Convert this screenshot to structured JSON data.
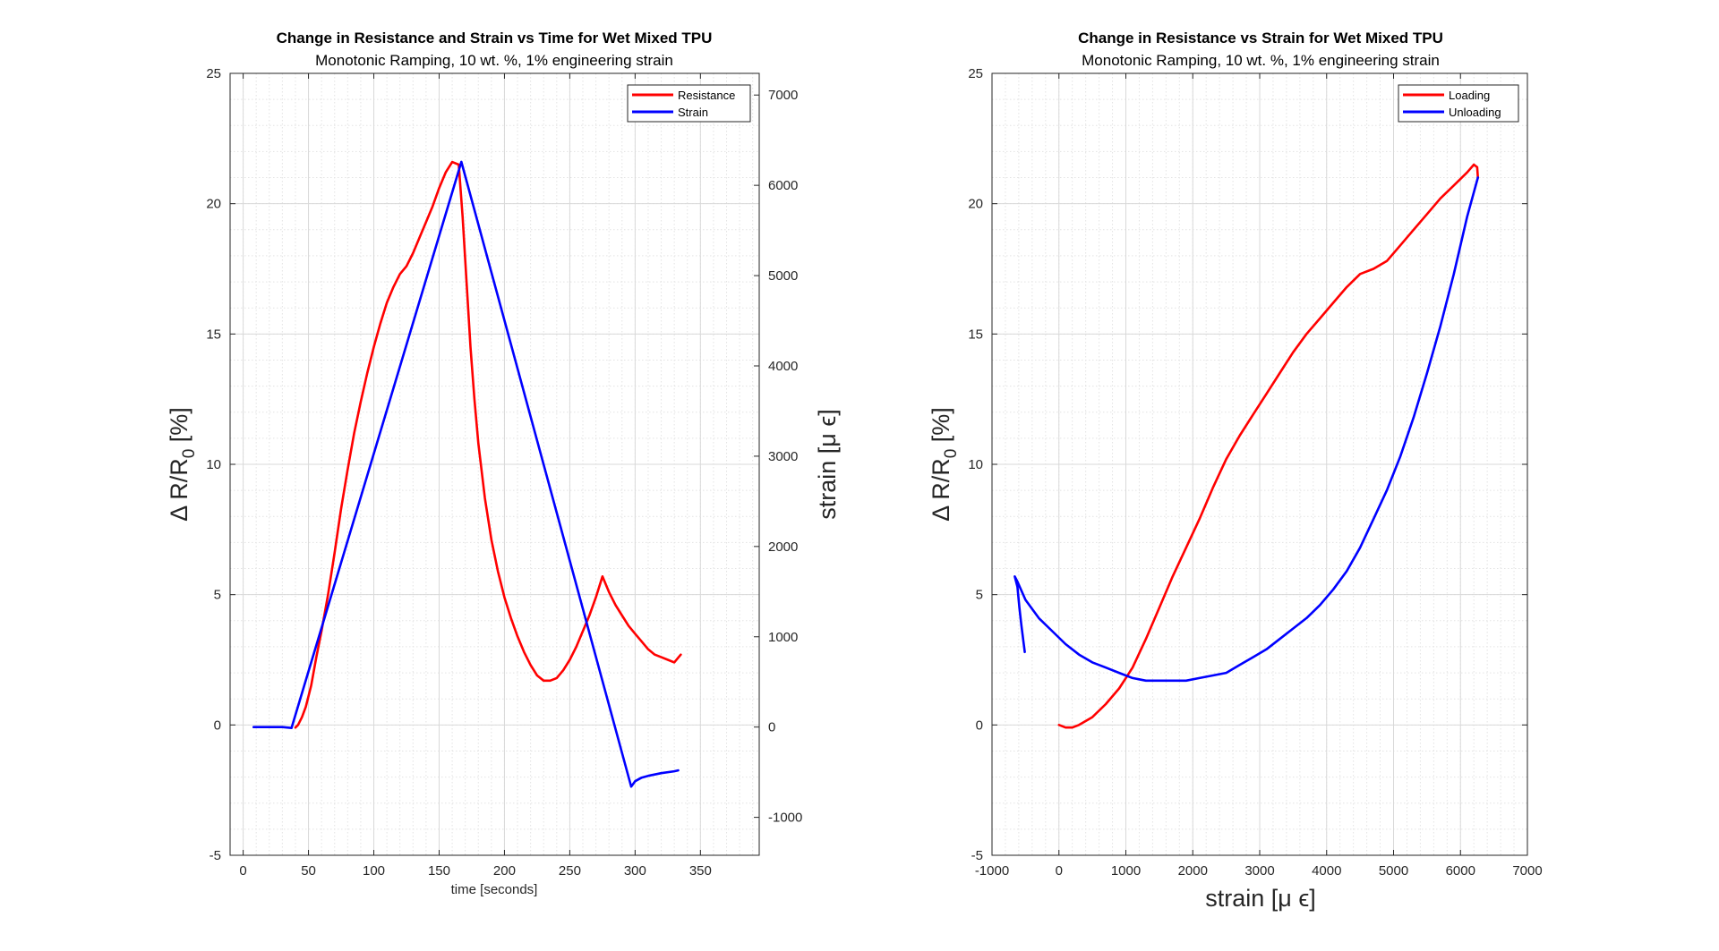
{
  "chart_data": [
    {
      "type": "line",
      "title": "Change in Resistance and Strain vs Time for Wet Mixed TPU",
      "subtitle": "Monotonic Ramping, 10 wt. %, 1% engineering strain",
      "xlabel": "time [seconds]",
      "ylabel": "Δ R/R0 [%]",
      "ylabel_main": "Δ R/R",
      "ylabel_sub": "0",
      "ylabel_tail": " [%]",
      "y2label": "strain [μ ϵ]",
      "xlim": [
        -10,
        395
      ],
      "ylim": [
        -5,
        25
      ],
      "y2lim": [
        -1420,
        7240
      ],
      "xticks": [
        0,
        50,
        100,
        150,
        200,
        250,
        300,
        350
      ],
      "yticks": [
        -5,
        0,
        5,
        10,
        15,
        20,
        25
      ],
      "y2ticks": [
        -1000,
        0,
        1000,
        2000,
        3000,
        4000,
        5000,
        6000,
        7000
      ],
      "grid": true,
      "minor_grid": true,
      "legend_position": "top-right",
      "series": [
        {
          "name": "Resistance",
          "axis": "left",
          "color": "#ff0000",
          "x": [
            40,
            42,
            45,
            48,
            52,
            56,
            60,
            65,
            70,
            75,
            80,
            85,
            90,
            95,
            100,
            105,
            110,
            115,
            120,
            125,
            130,
            135,
            140,
            145,
            150,
            155,
            160,
            165,
            168,
            171,
            174,
            177,
            180,
            185,
            190,
            195,
            200,
            205,
            210,
            215,
            220,
            225,
            230,
            235,
            240,
            245,
            250,
            255,
            260,
            265,
            270,
            275,
            280,
            285,
            290,
            295,
            300,
            305,
            310,
            315,
            320,
            325,
            330,
            335
          ],
          "y": [
            -0.1,
            0.0,
            0.3,
            0.7,
            1.5,
            2.6,
            3.6,
            5.0,
            6.6,
            8.3,
            9.8,
            11.2,
            12.4,
            13.5,
            14.5,
            15.4,
            16.2,
            16.8,
            17.3,
            17.6,
            18.1,
            18.7,
            19.3,
            19.9,
            20.6,
            21.2,
            21.6,
            21.5,
            19.5,
            17.0,
            14.5,
            12.5,
            10.8,
            8.7,
            7.1,
            5.9,
            4.9,
            4.1,
            3.4,
            2.8,
            2.3,
            1.9,
            1.7,
            1.7,
            1.8,
            2.1,
            2.5,
            3.0,
            3.6,
            4.2,
            4.9,
            5.7,
            5.1,
            4.6,
            4.2,
            3.8,
            3.5,
            3.2,
            2.9,
            2.7,
            2.6,
            2.5,
            2.4,
            2.7
          ]
        },
        {
          "name": "Strain",
          "axis": "right",
          "color": "#0000ff",
          "x": [
            8,
            20,
            30,
            37,
            167,
            297,
            300,
            305,
            310,
            320,
            330,
            333
          ],
          "y": [
            0,
            0,
            0,
            -10,
            6260,
            -660,
            -600,
            -560,
            -540,
            -510,
            -490,
            -480
          ]
        }
      ]
    },
    {
      "type": "line",
      "title": "Change in Resistance vs Strain for Wet Mixed TPU",
      "subtitle": "Monotonic Ramping, 10 wt. %, 1% engineering strain",
      "xlabel": "strain [μ ϵ]",
      "ylabel": "Δ R/R0 [%]",
      "ylabel_main": "Δ R/R",
      "ylabel_sub": "0",
      "ylabel_tail": " [%]",
      "xlim": [
        -1000,
        7000
      ],
      "ylim": [
        -5,
        25
      ],
      "xticks": [
        -1000,
        0,
        1000,
        2000,
        3000,
        4000,
        5000,
        6000,
        7000
      ],
      "yticks": [
        -5,
        0,
        5,
        10,
        15,
        20,
        25
      ],
      "grid": true,
      "minor_grid": true,
      "legend_position": "top-right",
      "series": [
        {
          "name": "Loading",
          "color": "#ff0000",
          "x": [
            0,
            100,
            200,
            300,
            500,
            700,
            900,
            1000,
            1100,
            1300,
            1500,
            1700,
            1900,
            2100,
            2300,
            2500,
            2700,
            2900,
            3100,
            3300,
            3500,
            3700,
            3900,
            4100,
            4300,
            4500,
            4700,
            4900,
            5100,
            5300,
            5500,
            5700,
            5900,
            6100,
            6200,
            6250,
            6260
          ],
          "y": [
            0.0,
            -0.1,
            -0.1,
            0.0,
            0.3,
            0.8,
            1.4,
            1.8,
            2.2,
            3.3,
            4.5,
            5.7,
            6.8,
            7.9,
            9.1,
            10.2,
            11.1,
            11.9,
            12.7,
            13.5,
            14.3,
            15.0,
            15.6,
            16.2,
            16.8,
            17.3,
            17.5,
            17.8,
            18.4,
            19.0,
            19.6,
            20.2,
            20.7,
            21.2,
            21.5,
            21.4,
            21.0
          ]
        },
        {
          "name": "Unloading",
          "color": "#0000ff",
          "x": [
            6260,
            6100,
            5900,
            5700,
            5500,
            5300,
            5100,
            4900,
            4700,
            4500,
            4300,
            4100,
            3900,
            3700,
            3500,
            3300,
            3100,
            2900,
            2700,
            2500,
            2300,
            2100,
            1900,
            1700,
            1500,
            1300,
            1100,
            900,
            700,
            500,
            300,
            100,
            -100,
            -300,
            -500,
            -620,
            -660,
            -620,
            -590,
            -560,
            -530,
            -510
          ],
          "y": [
            21.0,
            19.5,
            17.3,
            15.3,
            13.5,
            11.8,
            10.3,
            9.0,
            7.9,
            6.8,
            5.9,
            5.2,
            4.6,
            4.1,
            3.7,
            3.3,
            2.9,
            2.6,
            2.3,
            2.0,
            1.9,
            1.8,
            1.7,
            1.7,
            1.7,
            1.7,
            1.8,
            2.0,
            2.2,
            2.4,
            2.7,
            3.1,
            3.6,
            4.1,
            4.8,
            5.5,
            5.7,
            5.3,
            4.5,
            3.8,
            3.2,
            2.8
          ]
        }
      ]
    }
  ]
}
